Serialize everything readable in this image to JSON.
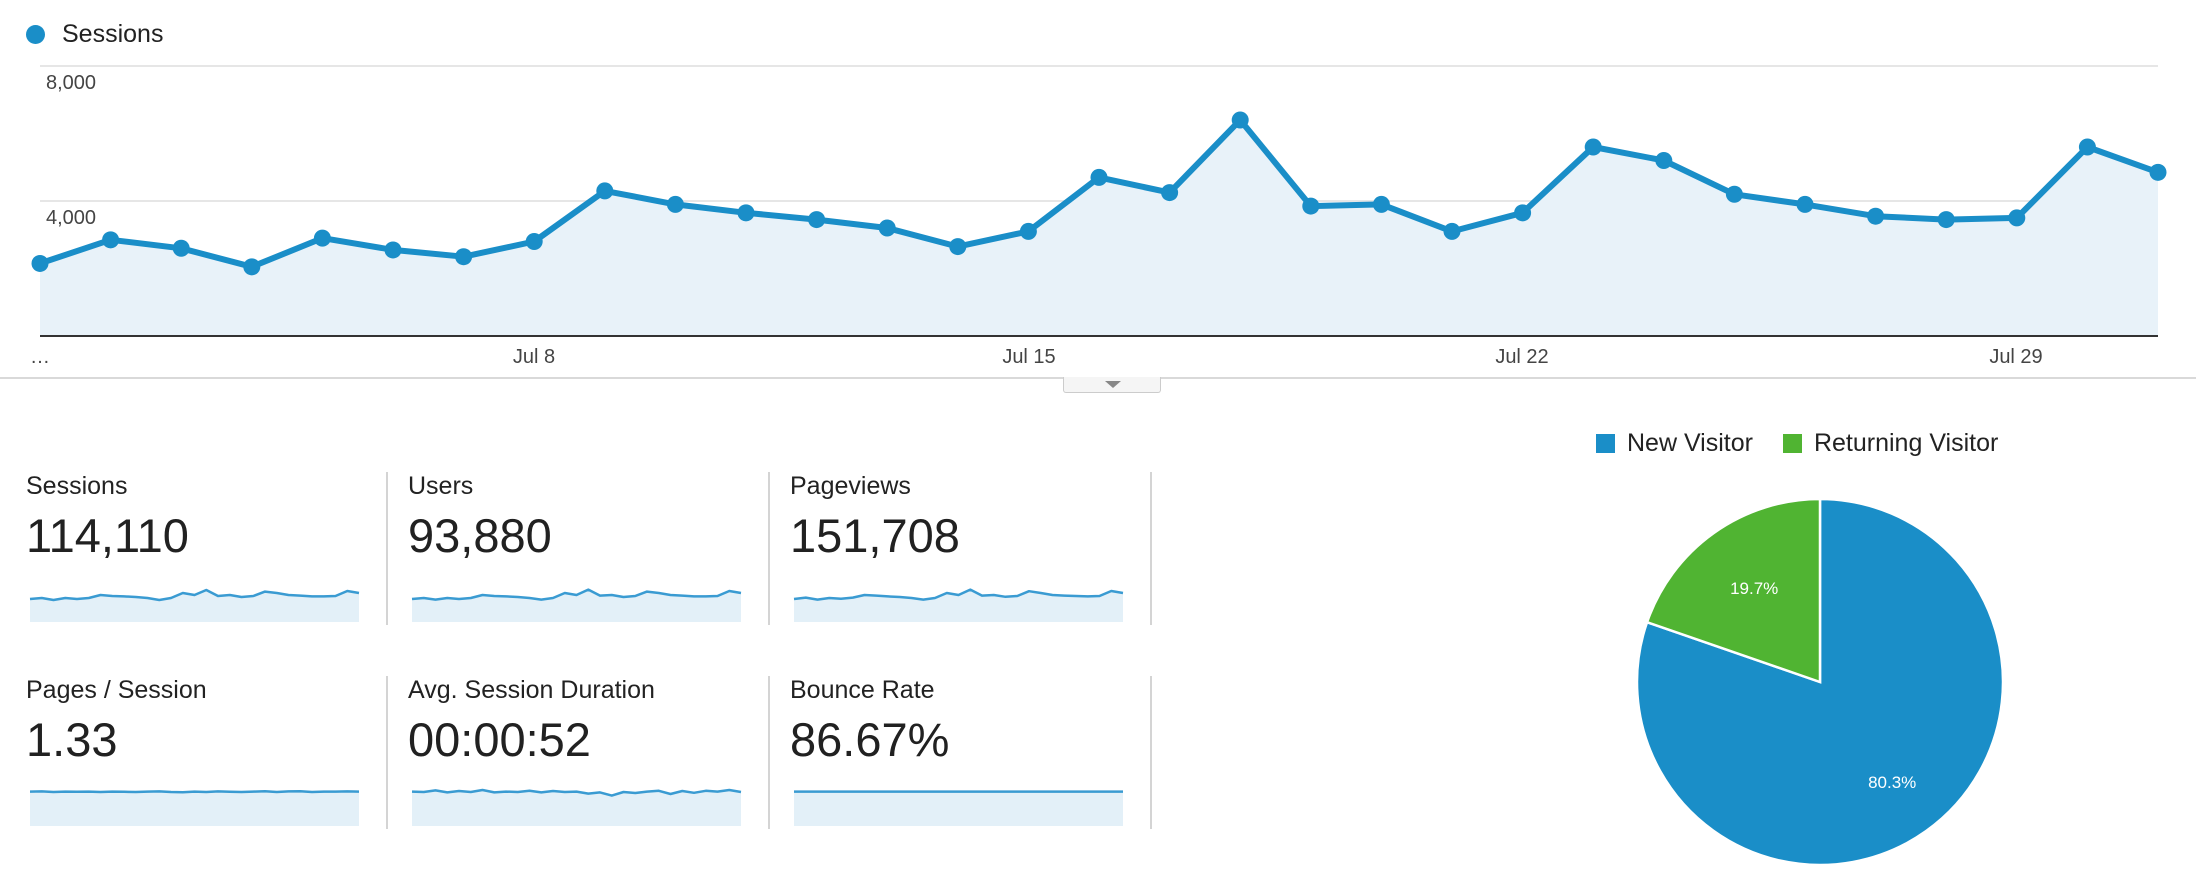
{
  "legend": {
    "label": "Sessions",
    "color": "#1a8ec8"
  },
  "chart_data": [
    {
      "type": "area",
      "series": [
        {
          "name": "Sessions",
          "values": [
            2150,
            2850,
            2600,
            2050,
            2900,
            2550,
            2350,
            2800,
            4300,
            3900,
            3650,
            3450,
            3200,
            2650,
            3100,
            4700,
            4250,
            6400,
            3850,
            3900,
            3100,
            3650,
            5600,
            5200,
            4200,
            3900,
            3550,
            3450,
            3500,
            5600,
            4850
          ]
        }
      ],
      "y_ticks": [
        "8,000",
        "4,000"
      ],
      "x_labels": [
        "…",
        "Jul 8",
        "Jul 15",
        "Jul 22",
        "Jul 29"
      ],
      "ylim": [
        0,
        8000
      ],
      "grid": true
    },
    {
      "type": "pie",
      "categories": [
        "New Visitor",
        "Returning Visitor"
      ],
      "values": [
        80.3,
        19.7
      ],
      "labels": [
        "80.3%",
        "19.7%"
      ],
      "colors": [
        "#1a8ec8",
        "#50b432"
      ],
      "legend_position": "top"
    }
  ],
  "metrics": [
    {
      "label": "Sessions",
      "value": "114,110",
      "spark": [
        0.25,
        0.3,
        0.2,
        0.3,
        0.25,
        0.3,
        0.45,
        0.4,
        0.38,
        0.35,
        0.3,
        0.2,
        0.3,
        0.55,
        0.45,
        0.7,
        0.4,
        0.45,
        0.35,
        0.4,
        0.62,
        0.55,
        0.45,
        0.42,
        0.38,
        0.38,
        0.4,
        0.65,
        0.55
      ]
    },
    {
      "label": "Users",
      "value": "93,880",
      "spark": [
        0.25,
        0.3,
        0.22,
        0.3,
        0.25,
        0.3,
        0.45,
        0.4,
        0.38,
        0.35,
        0.3,
        0.22,
        0.3,
        0.55,
        0.45,
        0.72,
        0.42,
        0.45,
        0.35,
        0.4,
        0.62,
        0.55,
        0.45,
        0.42,
        0.38,
        0.38,
        0.4,
        0.65,
        0.55
      ]
    },
    {
      "label": "Pageviews",
      "value": "151,708",
      "spark": [
        0.25,
        0.32,
        0.22,
        0.3,
        0.26,
        0.32,
        0.45,
        0.42,
        0.38,
        0.35,
        0.3,
        0.22,
        0.3,
        0.55,
        0.45,
        0.72,
        0.42,
        0.45,
        0.36,
        0.4,
        0.64,
        0.55,
        0.45,
        0.42,
        0.4,
        0.38,
        0.4,
        0.65,
        0.55
      ]
    },
    {
      "label": "Pages / Session",
      "value": "1.33",
      "spark": [
        0.82,
        0.83,
        0.8,
        0.82,
        0.81,
        0.82,
        0.8,
        0.82,
        0.81,
        0.8,
        0.82,
        0.83,
        0.8,
        0.79,
        0.82,
        0.8,
        0.83,
        0.81,
        0.8,
        0.82,
        0.84,
        0.8,
        0.83,
        0.84,
        0.8,
        0.82,
        0.82,
        0.83,
        0.82
      ]
    },
    {
      "label": "Avg. Session Duration",
      "value": "00:00:52",
      "spark": [
        0.82,
        0.8,
        0.88,
        0.78,
        0.85,
        0.8,
        0.9,
        0.78,
        0.82,
        0.8,
        0.86,
        0.78,
        0.85,
        0.8,
        0.82,
        0.72,
        0.78,
        0.62,
        0.8,
        0.75,
        0.82,
        0.86,
        0.7,
        0.85,
        0.76,
        0.86,
        0.82,
        0.9,
        0.8
      ]
    },
    {
      "label": "Bounce Rate",
      "value": "86.67%",
      "spark": [
        0.82,
        0.82,
        0.82,
        0.82,
        0.82,
        0.82,
        0.82,
        0.82,
        0.82,
        0.82,
        0.82,
        0.82,
        0.82,
        0.82,
        0.82,
        0.82,
        0.82,
        0.82,
        0.82,
        0.82,
        0.82,
        0.82,
        0.82,
        0.82,
        0.82,
        0.82,
        0.82,
        0.82,
        0.82
      ]
    }
  ]
}
